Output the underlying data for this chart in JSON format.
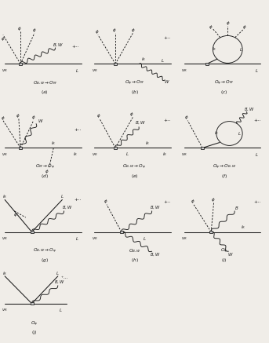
{
  "bg_color": "#f0ede8",
  "line_color": "#1a1a1a",
  "fig_width": 3.43,
  "fig_height": 4.37,
  "dpi": 100
}
